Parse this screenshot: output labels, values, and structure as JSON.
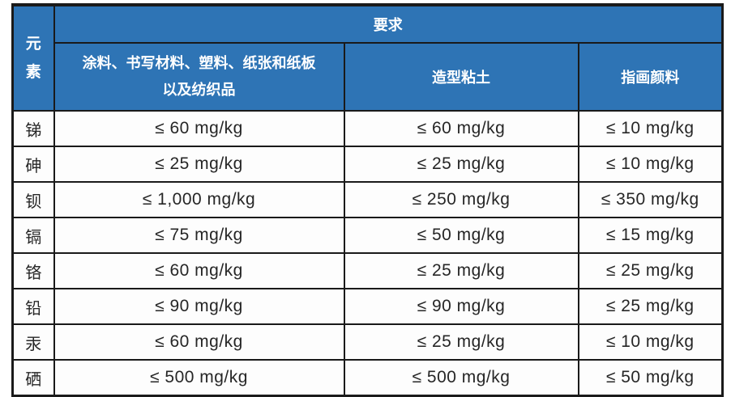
{
  "colors": {
    "header_bg": "#2e74b5",
    "header_text": "#ffffff",
    "border": "#1a1a1a",
    "cell_bg": "#fdfdfd",
    "cell_text": "#262626"
  },
  "table": {
    "corner": {
      "line1": "元",
      "line2": "素"
    },
    "top_header": "要求",
    "sub_headers": {
      "coatings_line1": "涂料、书写材料、塑料、纸张和纸板",
      "coatings_line2": "以及纺织品",
      "clay": "造型粘土",
      "finger_paint": "指画颜料"
    },
    "rows": [
      {
        "element": "锑",
        "values": [
          "≤ 60 mg/kg",
          "≤ 60 mg/kg",
          "≤ 10 mg/kg"
        ]
      },
      {
        "element": "砷",
        "values": [
          "≤ 25 mg/kg",
          "≤ 25 mg/kg",
          "≤ 10 mg/kg"
        ]
      },
      {
        "element": "钡",
        "values": [
          "≤ 1,000 mg/kg",
          "≤ 250 mg/kg",
          "≤ 350 mg/kg"
        ]
      },
      {
        "element": "镉",
        "values": [
          "≤ 75 mg/kg",
          "≤ 50 mg/kg",
          "≤ 15 mg/kg"
        ]
      },
      {
        "element": "铬",
        "values": [
          "≤ 60 mg/kg",
          "≤ 25 mg/kg",
          "≤ 25 mg/kg"
        ]
      },
      {
        "element": "铅",
        "values": [
          "≤ 90 mg/kg",
          "≤ 90 mg/kg",
          "≤ 25 mg/kg"
        ]
      },
      {
        "element": "汞",
        "values": [
          "≤ 60 mg/kg",
          "≤ 25 mg/kg",
          "≤ 10 mg/kg"
        ]
      },
      {
        "element": "硒",
        "values": [
          "≤ 500 mg/kg",
          "≤ 500 mg/kg",
          "≤ 50 mg/kg"
        ]
      }
    ]
  }
}
